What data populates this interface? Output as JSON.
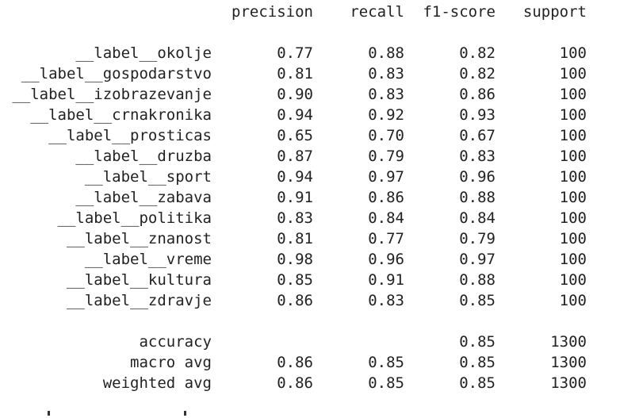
{
  "header": {
    "precision": "precision",
    "recall": "recall",
    "f1": "f1-score",
    "support": "support"
  },
  "rows": [
    {
      "label": "__label__okolje",
      "precision": "0.77",
      "recall": "0.88",
      "f1": "0.82",
      "support": "100"
    },
    {
      "label": "__label__gospodarstvo",
      "precision": "0.81",
      "recall": "0.83",
      "f1": "0.82",
      "support": "100"
    },
    {
      "label": "__label__izobrazevanje",
      "precision": "0.90",
      "recall": "0.83",
      "f1": "0.86",
      "support": "100"
    },
    {
      "label": "__label__crnakronika",
      "precision": "0.94",
      "recall": "0.92",
      "f1": "0.93",
      "support": "100"
    },
    {
      "label": "__label__prosticas",
      "precision": "0.65",
      "recall": "0.70",
      "f1": "0.67",
      "support": "100"
    },
    {
      "label": "__label__druzba",
      "precision": "0.87",
      "recall": "0.79",
      "f1": "0.83",
      "support": "100"
    },
    {
      "label": "__label__sport",
      "precision": "0.94",
      "recall": "0.97",
      "f1": "0.96",
      "support": "100"
    },
    {
      "label": "__label__zabava",
      "precision": "0.91",
      "recall": "0.86",
      "f1": "0.88",
      "support": "100"
    },
    {
      "label": "__label__politika",
      "precision": "0.83",
      "recall": "0.84",
      "f1": "0.84",
      "support": "100"
    },
    {
      "label": "__label__znanost",
      "precision": "0.81",
      "recall": "0.77",
      "f1": "0.79",
      "support": "100"
    },
    {
      "label": "__label__vreme",
      "precision": "0.98",
      "recall": "0.96",
      "f1": "0.97",
      "support": "100"
    },
    {
      "label": "__label__kultura",
      "precision": "0.85",
      "recall": "0.91",
      "f1": "0.88",
      "support": "100"
    },
    {
      "label": "__label__zdravje",
      "precision": "0.86",
      "recall": "0.83",
      "f1": "0.85",
      "support": "100"
    }
  ],
  "summary": [
    {
      "label": "accuracy",
      "precision": "",
      "recall": "",
      "f1": "0.85",
      "support": "1300"
    },
    {
      "label": "macro avg",
      "precision": "0.86",
      "recall": "0.85",
      "f1": "0.85",
      "support": "1300"
    },
    {
      "label": "weighted avg",
      "precision": "0.86",
      "recall": "0.85",
      "f1": "0.85",
      "support": "1300"
    }
  ]
}
